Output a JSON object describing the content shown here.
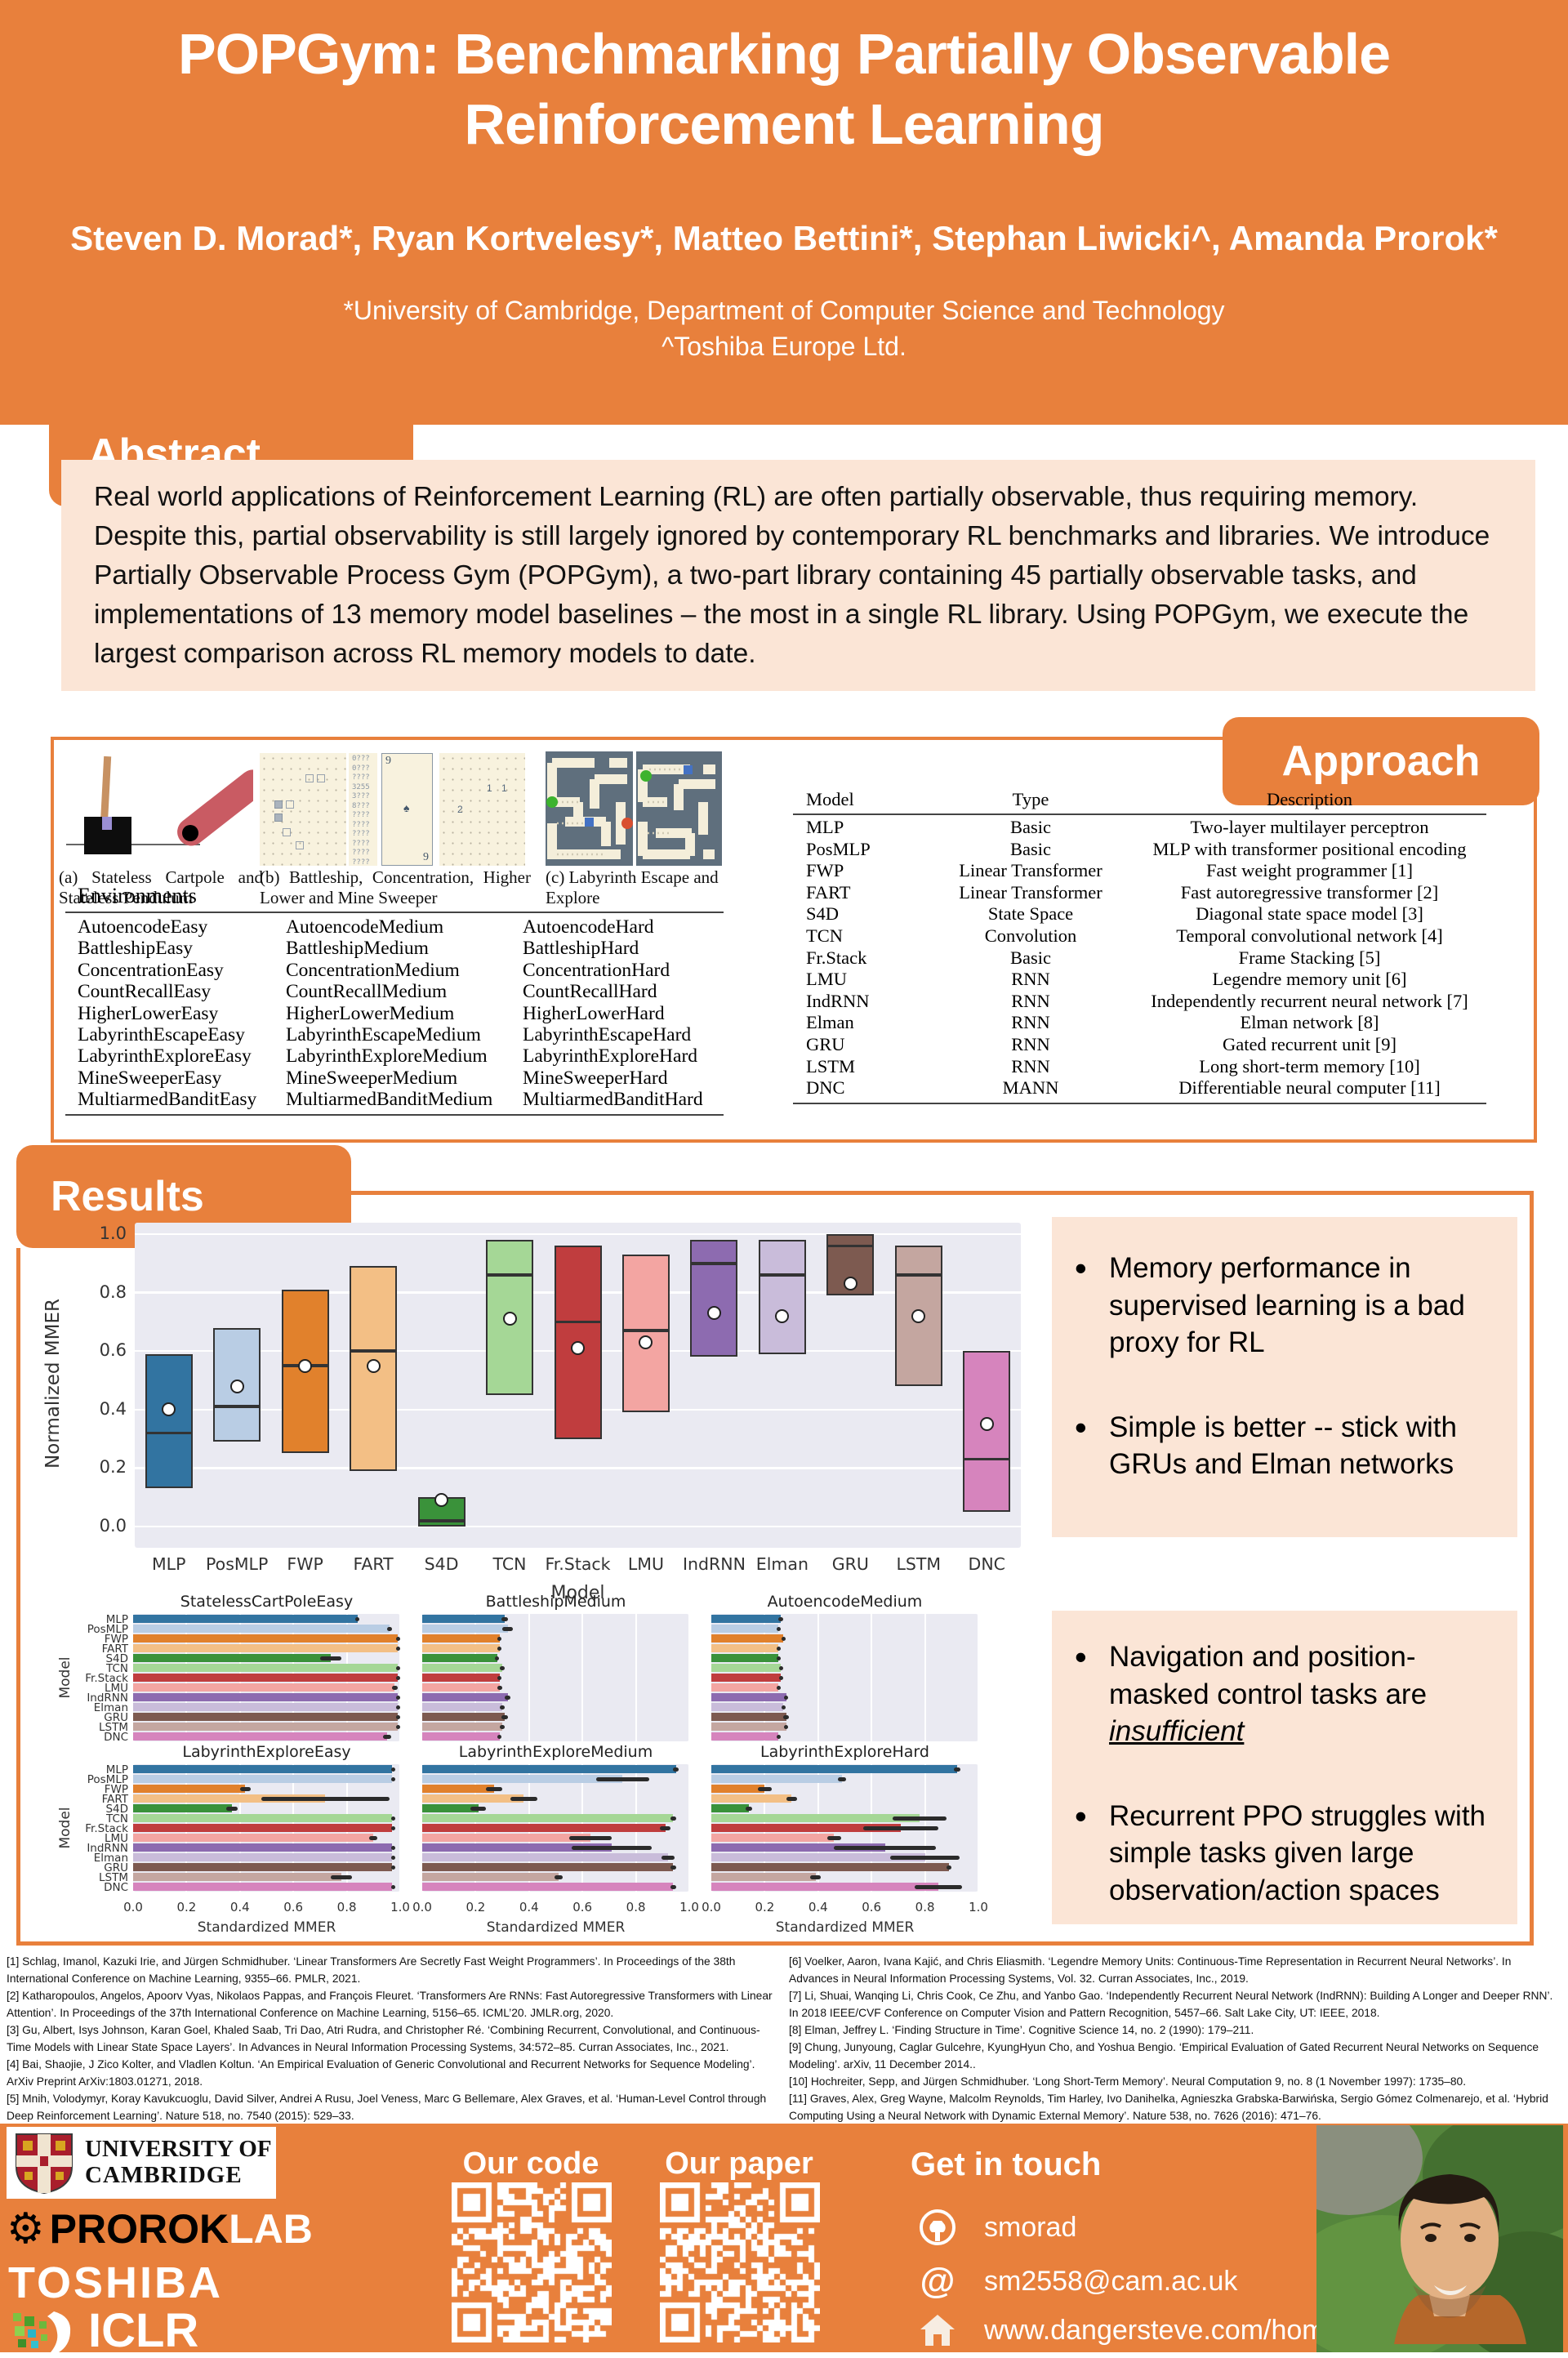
{
  "header": {
    "title_line1": "POPGym: Benchmarking Partially Observable",
    "title_line2": "Reinforcement Learning",
    "authors": "Steven D. Morad*, Ryan Kortvelesy*, Matteo Bettini*, Stephan Liwicki^, Amanda Prorok*",
    "affiliation1": "*University of Cambridge, Department of  Computer Science and Technology",
    "affiliation2": "^Toshiba Europe Ltd."
  },
  "sections": {
    "abstract_label": "Abstract",
    "approach_label": "Approach",
    "results_label": "Results"
  },
  "abstract": {
    "text": "Real world applications of Reinforcement Learning (RL) are often partially observable, thus requiring memory. Despite this, partial observability is still largely ignored by contemporary RL benchmarks and libraries. We introduce Partially Observable Process Gym (POPGym), a two-part library containing 45 partially observable tasks, and implementations of 13 memory model baselines – the most in a single RL library. Using POPGym, we execute the largest comparison across RL memory models to date."
  },
  "figures": {
    "caption_a": "(a) Stateless Cartpole and Stateless Pendulum",
    "caption_b": "(b) Battleship, Concentration, Higher Lower and Mine Sweeper",
    "caption_c": "(c) Labyrinth Escape and Explore",
    "card_top": "9",
    "card_mid": "♠",
    "card_bot": "9",
    "mines_a": "1 1",
    "mines_b": "2",
    "digit_lines": [
      "0???",
      "0???",
      "????",
      "3255",
      "3???",
      "8???",
      "????",
      "????",
      "????",
      "????",
      "????",
      "????"
    ]
  },
  "approach": {
    "environments": {
      "header": "Environments",
      "rows": [
        [
          "AutoencodeEasy",
          "AutoencodeMedium",
          "AutoencodeHard"
        ],
        [
          "BattleshipEasy",
          "BattleshipMedium",
          "BattleshipHard"
        ],
        [
          "ConcentrationEasy",
          "ConcentrationMedium",
          "ConcentrationHard"
        ],
        [
          "CountRecallEasy",
          "CountRecallMedium",
          "CountRecallHard"
        ],
        [
          "HigherLowerEasy",
          "HigherLowerMedium",
          "HigherLowerHard"
        ],
        [
          "LabyrinthEscapeEasy",
          "LabyrinthEscapeMedium",
          "LabyrinthEscapeHard"
        ],
        [
          "LabyrinthExploreEasy",
          "LabyrinthExploreMedium",
          "LabyrinthExploreHard"
        ],
        [
          "MineSweeperEasy",
          "MineSweeperMedium",
          "MineSweeperHard"
        ],
        [
          "MultiarmedBanditEasy",
          "MultiarmedBanditMedium",
          "MultiarmedBanditHard"
        ]
      ]
    },
    "models_table": {
      "headers": [
        "Model",
        "Type",
        "Description"
      ],
      "rows": [
        [
          "MLP",
          "Basic",
          "Two-layer multilayer perceptron"
        ],
        [
          "PosMLP",
          "Basic",
          "MLP with transformer positional encoding"
        ],
        [
          "FWP",
          "Linear Transformer",
          "Fast weight programmer [1]"
        ],
        [
          "FART",
          "Linear Transformer",
          "Fast autoregressive transformer [2]"
        ],
        [
          "S4D",
          "State Space",
          "Diagonal state space model [3]"
        ],
        [
          "TCN",
          "Convolution",
          "Temporal convolutional network [4]"
        ],
        [
          "Fr.Stack",
          "Basic",
          "Frame Stacking [5]"
        ],
        [
          "LMU",
          "RNN",
          "Legendre memory unit [6]"
        ],
        [
          "IndRNN",
          "RNN",
          "Independently recurrent neural network [7]"
        ],
        [
          "Elman",
          "RNN",
          "Elman network [8]"
        ],
        [
          "GRU",
          "RNN",
          "Gated recurrent unit [9]"
        ],
        [
          "LSTM",
          "RNN",
          "Long short-term memory [10]"
        ],
        [
          "DNC",
          "MANN",
          "Differentiable neural computer [11]"
        ]
      ]
    }
  },
  "bullets_box1": [
    [
      {
        "t": "Memory performance in supervised learning is a bad proxy for RL"
      }
    ],
    [
      {
        "t": "Simple is better -- stick with GRUs and Elman networks"
      }
    ]
  ],
  "bullets_box2": [
    [
      {
        "t": "Navigation and position-masked control tasks are "
      },
      {
        "t": "insufficient",
        "em": true
      }
    ],
    [
      {
        "t": "Recurrent PPO struggles with simple tasks given large observation/action spaces"
      }
    ]
  ],
  "chart_data": {
    "models": [
      "MLP",
      "PosMLP",
      "FWP",
      "FART",
      "S4D",
      "TCN",
      "Fr.Stack",
      "LMU",
      "IndRNN",
      "Elman",
      "GRU",
      "LSTM",
      "DNC"
    ],
    "palette": [
      "#3274a1",
      "#b9cde4",
      "#e1812c",
      "#f3bf85",
      "#3a923a",
      "#a5d796",
      "#c03d3e",
      "#f3a5a2",
      "#8d6bb0",
      "#c9bcda",
      "#7d5a50",
      "#c4a6a0",
      "#d684bd"
    ],
    "boxplot": {
      "type": "box",
      "ylabel": "Normalized MMER",
      "xlabel": "Model",
      "ylim": [
        0,
        1
      ],
      "yticks": [
        "1.0",
        "0.8",
        "0.6",
        "0.4",
        "0.2",
        "0.0"
      ],
      "stats": [
        {
          "model": "MLP",
          "q1": 0.13,
          "median": 0.32,
          "q3": 0.59,
          "mean": 0.4
        },
        {
          "model": "PosMLP",
          "q1": 0.29,
          "median": 0.41,
          "q3": 0.68,
          "mean": 0.48
        },
        {
          "model": "FWP",
          "q1": 0.25,
          "median": 0.55,
          "q3": 0.81,
          "mean": 0.55
        },
        {
          "model": "FART",
          "q1": 0.19,
          "median": 0.6,
          "q3": 0.89,
          "mean": 0.55
        },
        {
          "model": "S4D",
          "q1": 0.0,
          "median": 0.02,
          "q3": 0.1,
          "mean": 0.09
        },
        {
          "model": "TCN",
          "q1": 0.45,
          "median": 0.86,
          "q3": 0.98,
          "mean": 0.71
        },
        {
          "model": "Fr.Stack",
          "q1": 0.3,
          "median": 0.7,
          "q3": 0.96,
          "mean": 0.61
        },
        {
          "model": "LMU",
          "q1": 0.39,
          "median": 0.67,
          "q3": 0.93,
          "mean": 0.63
        },
        {
          "model": "IndRNN",
          "q1": 0.58,
          "median": 0.9,
          "q3": 0.98,
          "mean": 0.73
        },
        {
          "model": "Elman",
          "q1": 0.59,
          "median": 0.86,
          "q3": 0.98,
          "mean": 0.72
        },
        {
          "model": "GRU",
          "q1": 0.79,
          "median": 0.96,
          "q3": 1.0,
          "mean": 0.83
        },
        {
          "model": "LSTM",
          "q1": 0.48,
          "median": 0.86,
          "q3": 0.96,
          "mean": 0.72
        },
        {
          "model": "DNC",
          "q1": 0.05,
          "median": 0.23,
          "q3": 0.6,
          "mean": 0.35
        }
      ]
    },
    "bar_rows": [
      [
        {
          "type": "bar",
          "title": "StatelessCartPoleEasy",
          "values": [
            0.84,
            0.96,
            0.99,
            0.99,
            0.74,
            0.99,
            0.99,
            0.98,
            0.99,
            0.99,
            0.99,
            0.99,
            0.95
          ],
          "err": [
            0.008,
            0.008,
            0.005,
            0.004,
            0.04,
            0.004,
            0.004,
            0.01,
            0.004,
            0.004,
            0.004,
            0.004,
            0.015
          ]
        },
        {
          "type": "bar",
          "title": "BattleshipMedium",
          "values": [
            0.31,
            0.32,
            0.29,
            0.29,
            0.28,
            0.3,
            0.29,
            0.29,
            0.32,
            0.3,
            0.31,
            0.3,
            0.29
          ],
          "err": [
            0.012,
            0.02,
            0.008,
            0.008,
            0.008,
            0.008,
            0.008,
            0.01,
            0.01,
            0.008,
            0.012,
            0.008,
            0.008
          ]
        },
        {
          "type": "bar",
          "title": "AutoencodeMedium",
          "values": [
            0.26,
            0.25,
            0.27,
            0.25,
            0.25,
            0.26,
            0.26,
            0.25,
            0.28,
            0.27,
            0.28,
            0.28,
            0.25
          ],
          "err": [
            0.008,
            0.006,
            0.008,
            0.006,
            0.006,
            0.006,
            0.006,
            0.006,
            0.008,
            0.008,
            0.01,
            0.008,
            0.006
          ]
        }
      ],
      [
        {
          "type": "bar",
          "title": "LabyrinthExploreEasy",
          "values": [
            0.97,
            0.97,
            0.42,
            0.72,
            0.37,
            0.97,
            0.97,
            0.9,
            0.97,
            0.97,
            0.97,
            0.78,
            0.97
          ],
          "err": [
            0.005,
            0.005,
            0.02,
            0.24,
            0.02,
            0.005,
            0.005,
            0.015,
            0.005,
            0.005,
            0.005,
            0.04,
            0.005
          ]
        },
        {
          "type": "bar",
          "title": "LabyrinthExploreMedium",
          "values": [
            0.95,
            0.75,
            0.27,
            0.38,
            0.21,
            0.94,
            0.91,
            0.63,
            0.71,
            0.92,
            0.94,
            0.51,
            0.94
          ],
          "err": [
            0.01,
            0.1,
            0.03,
            0.05,
            0.03,
            0.01,
            0.02,
            0.08,
            0.15,
            0.025,
            0.01,
            0.015,
            0.01
          ]
        },
        {
          "type": "bar",
          "title": "LabyrinthExploreHard",
          "values": [
            0.92,
            0.49,
            0.2,
            0.3,
            0.14,
            0.78,
            0.71,
            0.46,
            0.65,
            0.8,
            0.89,
            0.39,
            0.85
          ],
          "err": [
            0.012,
            0.015,
            0.025,
            0.02,
            0.012,
            0.1,
            0.14,
            0.025,
            0.19,
            0.13,
            0.01,
            0.02,
            0.09
          ]
        }
      ]
    ],
    "bar_xlabel": "Standardized MMER",
    "bar_xticks": [
      "0.0",
      "0.2",
      "0.4",
      "0.6",
      "0.8",
      "1.0"
    ],
    "row_ylabel": "Model"
  },
  "references": {
    "left": [
      "[1] Schlag, Imanol, Kazuki Irie, and Jürgen Schmidhuber. ‘Linear Transformers Are Secretly Fast Weight Programmers’. In Proceedings of the 38th International Conference on Machine Learning, 9355–66. PMLR, 2021.",
      "[2] Katharopoulos, Angelos, Apoorv Vyas, Nikolaos Pappas, and François Fleuret. ‘Transformers Are RNNs: Fast Autoregressive Transformers with Linear Attention’. In Proceedings of the 37th International Conference on Machine Learning, 5156–65. ICML’20. JMLR.org, 2020.",
      "[3] Gu, Albert, Isys Johnson, Karan Goel, Khaled Saab, Tri Dao, Atri Rudra, and Christopher Ré. ‘Combining Recurrent, Convolutional, and Continuous-Time Models with Linear State Space Layers’. In Advances in Neural Information Processing Systems, 34:572–85. Curran Associates, Inc., 2021.",
      "[4] Bai, Shaojie, J Zico Kolter, and Vladlen Koltun. ‘An Empirical Evaluation of Generic Convolutional and Recurrent Networks for Sequence Modeling’. ArXiv Preprint ArXiv:1803.01271, 2018.",
      "[5] Mnih, Volodymyr, Koray Kavukcuoglu, David Silver, Andrei A Rusu, Joel Veness, Marc G Bellemare, Alex Graves, et al. ‘Human-Level Control through Deep Reinforcement Learning’. Nature 518, no. 7540 (2015): 529–33."
    ],
    "right": [
      "[6] Voelker, Aaron, Ivana Kajić, and Chris Eliasmith. ‘Legendre Memory Units: Continuous-Time Representation in Recurrent Neural Networks’. In Advances in Neural Information Processing Systems, Vol. 32. Curran Associates, Inc., 2019.",
      "[7] Li, Shuai, Wanqing Li, Chris Cook, Ce Zhu, and Yanbo Gao. ‘Independently Recurrent Neural Network (IndRNN): Building A Longer and Deeper RNN’. In 2018 IEEE/CVF Conference on Computer Vision and Pattern Recognition, 5457–66. Salt Lake City, UT: IEEE, 2018.",
      "[8] Elman, Jeffrey L. ‘Finding Structure in Time’. Cognitive Science 14, no. 2 (1990): 179–211.",
      "[9] Chung, Junyoung, Caglar Gulcehre, KyungHyun Cho, and Yoshua Bengio. ‘Empirical Evaluation of Gated Recurrent Neural Networks on Sequence Modeling’. arXiv, 11 December 2014..",
      "[10] Hochreiter, Sepp, and Jürgen Schmidhuber. ‘Long Short-Term Memory’. Neural Computation 9, no. 8 (1 November 1997): 1735–80.",
      "[11] Graves, Alex, Greg Wayne, Malcolm Reynolds, Tim Harley, Ivo Danihelka, Agnieszka Grabska-Barwińska, Sergio Gómez Colmenarejo, et al. ‘Hybrid Computing Using a Neural Network with Dynamic External Memory’. Nature 538, no. 7626 (2016): 471–76."
    ]
  },
  "footer": {
    "our_code": "Our code",
    "our_paper": "Our paper",
    "get_in_touch": "Get in touch",
    "github": "smorad",
    "email": "sm2558@cam.ac.uk",
    "website": "www.dangersteve.com/home",
    "logos": {
      "cambridge_line1": "UNIVERSITY OF",
      "cambridge_line2": "CAMBRIDGE",
      "prorok": "PROROK",
      "lab": "LAB",
      "toshiba": "TOSHIBA",
      "iclr": "ICLR"
    }
  },
  "colors": {
    "accent_orange": "#E8803C",
    "panel_pink": "#FBE5D6",
    "plot_bg": "#eaeaf2"
  }
}
